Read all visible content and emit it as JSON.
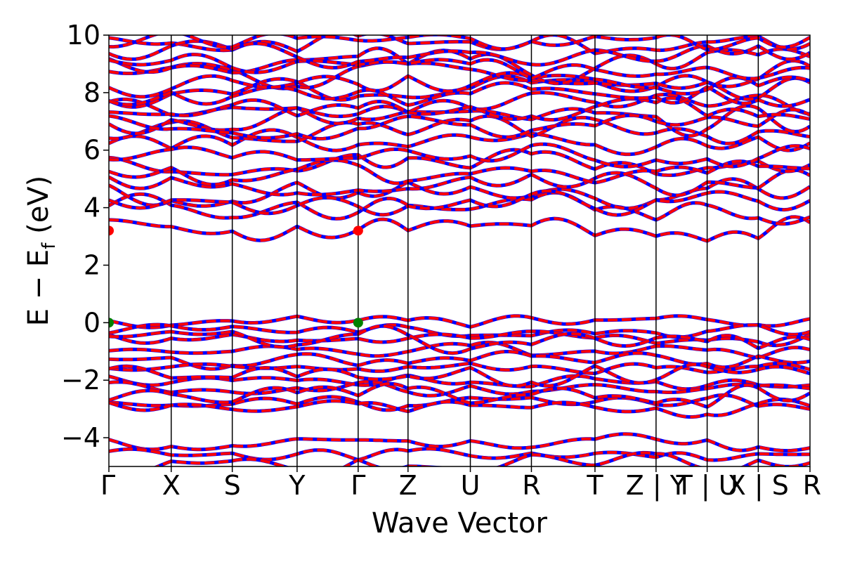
{
  "chart_data": {
    "type": "line",
    "title": "",
    "xlabel": "Wave Vector",
    "ylabel_main": "E − E",
    "ylabel_sub": "f",
    "ylabel_unit": " (eV)",
    "ylim": [
      -5,
      10
    ],
    "yticks": [
      10,
      8,
      6,
      4,
      2,
      0,
      -2,
      -4
    ],
    "ytick_labels": [
      "10",
      "8",
      "6",
      "4",
      "2",
      "0",
      "−2",
      "−4"
    ],
    "kpath": [
      {
        "label": "Γ",
        "x": 0.0
      },
      {
        "label": "X",
        "x": 1.0
      },
      {
        "label": "S",
        "x": 1.98
      },
      {
        "label": "Y",
        "x": 3.02
      },
      {
        "label": "Γ",
        "x": 4.0
      },
      {
        "label": "Z",
        "x": 4.8
      },
      {
        "label": "U",
        "x": 5.8
      },
      {
        "label": "R",
        "x": 6.78
      },
      {
        "label": "T",
        "x": 7.8
      },
      {
        "label": "Z | Y",
        "x": 8.78
      },
      {
        "label": "T | U",
        "x": 9.6
      },
      {
        "label": "X | S",
        "x": 10.42
      },
      {
        "label": "R",
        "x": 11.25
      }
    ],
    "xlim": [
      0,
      11.25
    ],
    "band_colors": {
      "spin_up": "#0000ff",
      "spin_down": "#ff0000"
    },
    "vbm": {
      "energy": 0.0,
      "color": "#008000",
      "at_x": [
        0.0,
        4.0
      ]
    },
    "cbm": {
      "energy": 3.2,
      "color": "#ff0000",
      "at_x": [
        0.0,
        4.0
      ]
    },
    "valence_band_levels_at_gamma": [
      0.0,
      -0.3,
      -0.5,
      -1.0,
      -1.3,
      -1.6,
      -2.0,
      -2.3,
      -2.8,
      -3.0,
      -4.2,
      -4.6
    ],
    "conduction_band_levels_at_gamma": [
      3.2,
      3.95,
      4.6,
      4.9,
      5.5,
      6.2,
      6.7,
      7.1,
      7.6,
      8.1,
      8.6,
      9.0,
      9.6
    ]
  }
}
